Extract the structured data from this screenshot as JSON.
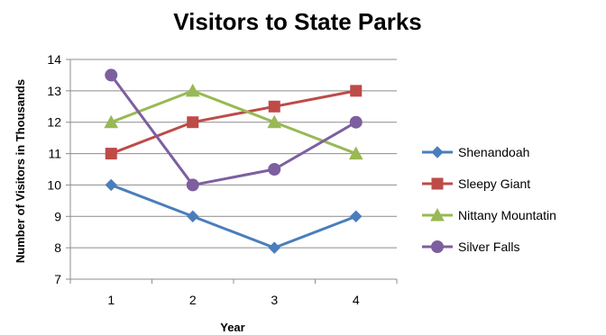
{
  "chart_data": {
    "type": "line",
    "title": "Visitors to State Parks",
    "xlabel": "Year",
    "ylabel": "Number of Visitors in Thousands",
    "categories": [
      "1",
      "2",
      "3",
      "4"
    ],
    "ylim": [
      7,
      14
    ],
    "yticks": [
      "7",
      "8",
      "9",
      "10",
      "11",
      "12",
      "13",
      "14"
    ],
    "grid": true,
    "legend_position": "right",
    "series": [
      {
        "name": "Shenandoah",
        "values": [
          10,
          9,
          8,
          9
        ],
        "color": "#4a7ebb",
        "marker": "diamond"
      },
      {
        "name": "Sleepy Giant",
        "values": [
          11,
          12,
          12.5,
          13
        ],
        "color": "#be4b48",
        "marker": "square"
      },
      {
        "name": "Nittany Mountatin",
        "values": [
          12,
          13,
          12,
          11
        ],
        "color": "#98b954",
        "marker": "triangle"
      },
      {
        "name": "Silver Falls",
        "values": [
          13.5,
          10,
          10.5,
          12
        ],
        "color": "#7d5fa0",
        "marker": "circle"
      }
    ]
  }
}
